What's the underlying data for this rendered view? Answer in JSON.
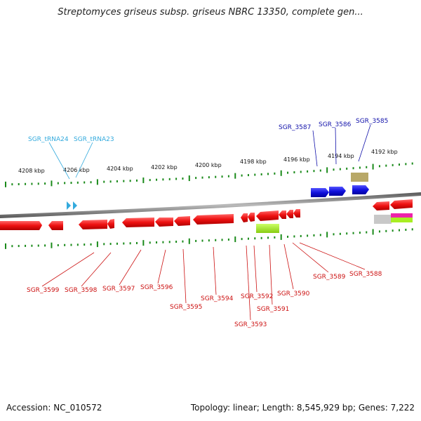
{
  "title": "Streptomyces griseus subsp. griseus NBRC 13350, complete gen...",
  "footer": {
    "accession": "Accession: NC_010572",
    "topology": "Topology: linear; Length: 8,545,929 bp; Genes: 7,222"
  },
  "ruler_labels": [
    "4208 kbp",
    "4206 kbp",
    "4204 kbp",
    "4202 kbp",
    "4200 kbp",
    "4198 kbp",
    "4196 kbp",
    "4194 kbp",
    "4192 kbp"
  ],
  "genes_reverse": [
    "SGR_3599",
    "SGR_3598",
    "SGR_3597",
    "SGR_3596",
    "SGR_3595",
    "SGR_3594",
    "SGR_3593",
    "SGR_3592",
    "SGR_3591",
    "SGR_3590",
    "SGR_3589",
    "SGR_3588"
  ],
  "genes_forward": [
    "SGR_3587",
    "SGR_3586",
    "SGR_3585"
  ],
  "trnas": [
    "SGR_tRNA24",
    "SGR_tRNA23"
  ],
  "colors": {
    "reverse_gene": "#ee1111",
    "forward_gene": "#1111dd",
    "trna": "#33aadd",
    "other_feature": "#a8ee22",
    "tan_feature": "#b8a868",
    "pink_feature": "#ee22aa",
    "grey_feature": "#c8c8c8",
    "tick": "#1a8a1a",
    "backbone": "#888888"
  }
}
